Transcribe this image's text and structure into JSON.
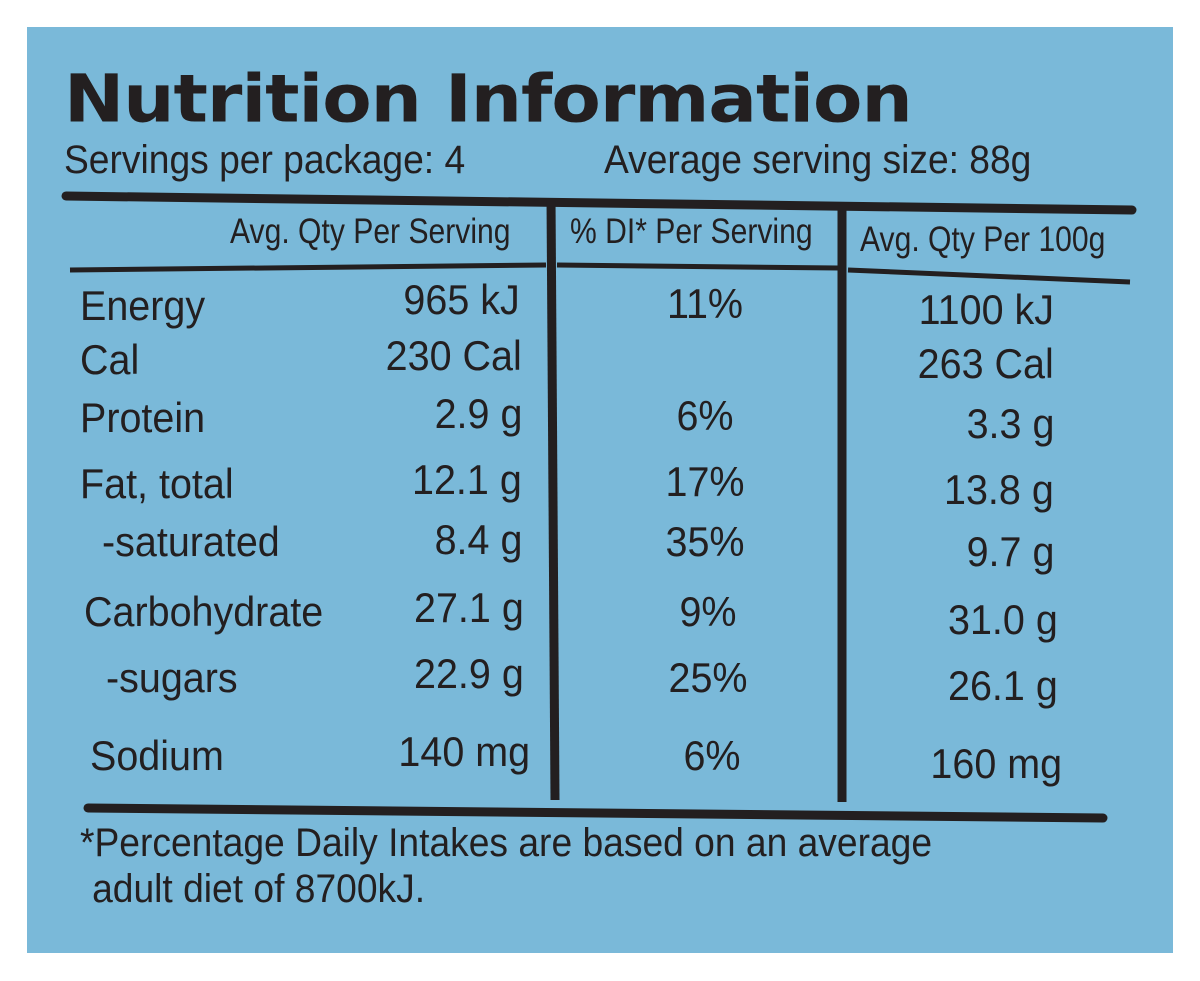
{
  "label": {
    "title": "Nutrition Information",
    "servings_per_package": "Servings per package: 4",
    "average_serving_size": "Average serving size: 88g",
    "columns": {
      "per_serving": "Avg. Qty Per Serving",
      "di_per_serving": "% DI* Per Serving",
      "per_100g": "Avg. Qty Per 100g"
    },
    "rows": [
      {
        "name": "Energy",
        "per_serving": "965 kJ",
        "di": "11%",
        "per_100g": "1100 kJ"
      },
      {
        "name": "Cal",
        "per_serving": "230 Cal",
        "di": "",
        "per_100g": "263 Cal"
      },
      {
        "name": "Protein",
        "per_serving": "2.9 g",
        "di": "6%",
        "per_100g": "3.3 g"
      },
      {
        "name": "Fat, total",
        "per_serving": "12.1 g",
        "di": "17%",
        "per_100g": "13.8 g"
      },
      {
        "name": "-saturated",
        "per_serving": "8.4 g",
        "di": "35%",
        "per_100g": "9.7 g"
      },
      {
        "name": "Carbohydrate",
        "per_serving": "27.1 g",
        "di": "9%",
        "per_100g": "31.0 g"
      },
      {
        "name": "-sugars",
        "per_serving": "22.9 g",
        "di": "25%",
        "per_100g": "26.1 g"
      },
      {
        "name": "Sodium",
        "per_serving": "140 mg",
        "di": "6%",
        "per_100g": "160 mg"
      }
    ],
    "footnote_line1": "*Percentage Daily Intakes are based on an average",
    "footnote_line2": "adult diet of 8700kJ."
  },
  "colors": {
    "panel": "#7ab9d9",
    "ink": "#231f20"
  }
}
